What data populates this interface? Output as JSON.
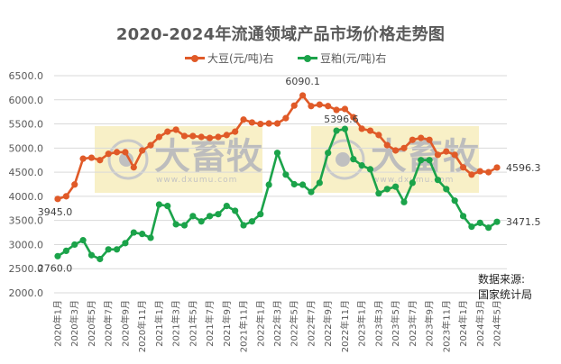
{
  "chart_data": {
    "type": "line",
    "title": "2020-2024年流通领域产品市场价格走势图",
    "xlabel": "",
    "ylabel": "",
    "ylim": [
      2000,
      6500
    ],
    "yticks": [
      "6500.0",
      "6000.0",
      "5500.0",
      "5000.0",
      "4500.0",
      "4000.0",
      "3500.0",
      "3000.0",
      "2500.0",
      "2000.0"
    ],
    "grid": true,
    "legend_position": "top",
    "x": [
      "2020年1月",
      "2020年2月",
      "2020年3月",
      "2020年4月",
      "2020年5月",
      "2020年6月",
      "2020年7月",
      "2020年8月",
      "2020年9月",
      "2020年10月",
      "2020年11月",
      "2020年12月",
      "2021年1月",
      "2021年2月",
      "2021年3月",
      "2021年4月",
      "2021年5月",
      "2021年6月",
      "2021年7月",
      "2021年8月",
      "2021年9月",
      "2021年10月",
      "2021年11月",
      "2021年12月",
      "2022年1月",
      "2022年2月",
      "2022年3月",
      "2022年4月",
      "2022年5月",
      "2022年6月",
      "2022年7月",
      "2022年8月",
      "2022年9月",
      "2022年10月",
      "2022年11月",
      "2022年12月",
      "2023年1月",
      "2023年2月",
      "2023年3月",
      "2023年4月",
      "2023年5月",
      "2023年6月",
      "2023年7月",
      "2023年8月",
      "2023年9月",
      "2023年10月",
      "2023年11月",
      "2023年12月",
      "2024年1月",
      "2024年2月",
      "2024年3月",
      "2024年4月",
      "2024年5月"
    ],
    "xtick_labels": [
      "2020年1月",
      "2020年3月",
      "2020年5月",
      "2020年7月",
      "2020年9月",
      "2020年11月",
      "2021年1月",
      "2021年3月",
      "2021年5月",
      "2021年7月",
      "2021年9月",
      "2021年11月",
      "2022年1月",
      "2022年3月",
      "2022年5月",
      "2022年7月",
      "2022年9月",
      "2022年11月",
      "2023年1月",
      "2023年3月",
      "2023年5月",
      "2023年7月",
      "2023年9月",
      "2023年11月",
      "2024年1月",
      "2024年3月",
      "2024年5月"
    ],
    "series": [
      {
        "name": "大豆(元/吨)右",
        "color": "#E05A28",
        "values": [
          3945.0,
          4000,
          4245,
          4780,
          4800,
          4750,
          4880,
          4915,
          4915,
          4600,
          4950,
          5060,
          5230,
          5340,
          5380,
          5250,
          5250,
          5230,
          5210,
          5230,
          5270,
          5340,
          5590,
          5530,
          5500,
          5510,
          5510,
          5620,
          5880,
          6090.1,
          5870,
          5900,
          5870,
          5790,
          5810,
          5640,
          5400,
          5360,
          5270,
          5060,
          4950,
          5000,
          5170,
          5210,
          5170,
          4860,
          4930,
          4860,
          4600,
          4450,
          4520,
          4500,
          4596.3
        ],
        "annotations": [
          {
            "index": 0,
            "text": "3945.0"
          },
          {
            "index": 29,
            "text": "6090.1"
          },
          {
            "index": 52,
            "text": "4596.3"
          }
        ]
      },
      {
        "name": "豆粕(元/吨)右",
        "color": "#1BA34A",
        "values": [
          2760.0,
          2870,
          3000,
          3090,
          2780,
          2700,
          2900,
          2900,
          3030,
          3250,
          3220,
          3140,
          3830,
          3800,
          3420,
          3400,
          3590,
          3480,
          3590,
          3630,
          3800,
          3700,
          3400,
          3480,
          3630,
          4240,
          4900,
          4450,
          4250,
          4240,
          4090,
          4280,
          4900,
          5360,
          5396.6,
          4770,
          4640,
          4560,
          4060,
          4150,
          4200,
          3880,
          4280,
          4750,
          4750,
          4340,
          4150,
          3910,
          3590,
          3370,
          3450,
          3350,
          3471.5
        ],
        "annotations": [
          {
            "index": 0,
            "text": "2760.0"
          },
          {
            "index": 34,
            "text": "5396.6"
          },
          {
            "index": 52,
            "text": "3471.5"
          }
        ]
      }
    ],
    "source_note": [
      "数据来源:",
      "国家统计局"
    ]
  },
  "title": "2020-2024年流通领域产品市场价格走势图",
  "legend": [
    {
      "label": "大豆(元/吨)右",
      "color": "#E05A28"
    },
    {
      "label": "豆粕(元/吨)右",
      "color": "#1BA34A"
    }
  ],
  "source": {
    "line1": "数据来源:",
    "line2": "国家统计局"
  },
  "watermark": {
    "text": "大畜牧",
    "url": "www.dxumu.com"
  }
}
